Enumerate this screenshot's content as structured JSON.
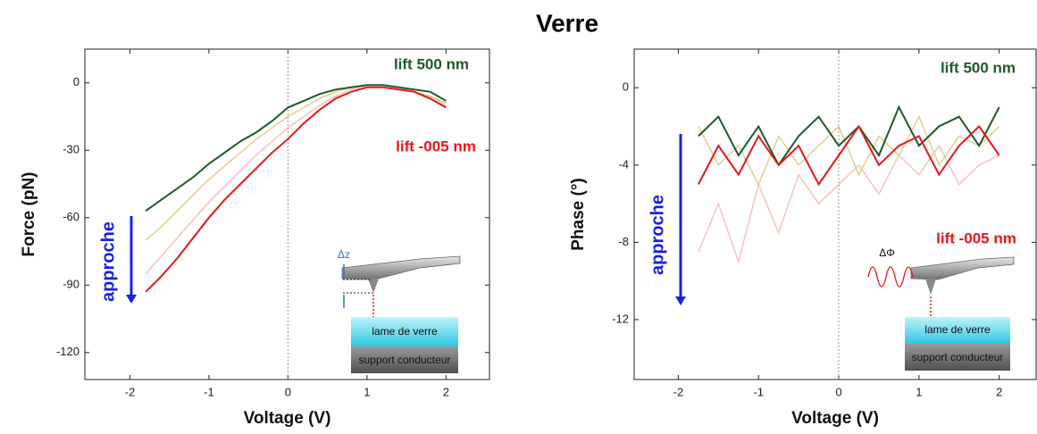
{
  "title": "Verre",
  "chart_data": [
    {
      "type": "line",
      "xlabel": "Voltage (V)",
      "ylabel": "Force (pN)",
      "xlim": [
        -2.57,
        2.55
      ],
      "ylim": [
        -132,
        15
      ],
      "xticks": [
        -2,
        -1,
        0,
        1,
        2
      ],
      "yticks": [
        0,
        -30,
        -60,
        -90,
        -120
      ],
      "arrow_label": "approche",
      "inset": {
        "delta_label": "Δz",
        "layer_top": "lame de verre",
        "layer_bottom": "support conducteur"
      },
      "series": [
        {
          "color": "#f4b8b0",
          "x": [
            -1.8,
            -1.6,
            -1.4,
            -1.2,
            -1,
            -0.8,
            -0.6,
            -0.4,
            -0.2,
            0,
            0.2,
            0.4,
            0.6,
            0.8,
            1,
            1.2,
            1.4,
            1.6,
            1.8,
            2
          ],
          "values": [
            -85,
            -77,
            -69,
            -61,
            -53,
            -46,
            -39,
            -32,
            -26,
            -20,
            -15,
            -10,
            -6,
            -3,
            -1,
            -1,
            -2,
            -4,
            -6,
            -10
          ]
        },
        {
          "color": "#d9c77a",
          "x": [
            -1.8,
            -1.6,
            -1.4,
            -1.2,
            -1,
            -0.8,
            -0.6,
            -0.4,
            -0.2,
            0,
            0.2,
            0.4,
            0.6,
            0.8,
            1,
            1.2,
            1.4,
            1.6,
            1.8,
            2
          ],
          "values": [
            -70,
            -64,
            -57,
            -50,
            -43,
            -37,
            -31,
            -25,
            -20,
            -15,
            -11,
            -7,
            -4,
            -2,
            -1,
            -1,
            -2,
            -4,
            -6,
            -9
          ]
        },
        {
          "name": "lift 500 nm",
          "color": "#1e5a28",
          "x": [
            -1.8,
            -1.6,
            -1.4,
            -1.2,
            -1,
            -0.8,
            -0.6,
            -0.4,
            -0.2,
            0,
            0.2,
            0.4,
            0.6,
            0.8,
            1,
            1.2,
            1.4,
            1.6,
            1.8,
            2
          ],
          "values": [
            -57,
            -52,
            -47,
            -42,
            -36,
            -31,
            -26,
            -22,
            -17,
            -11,
            -8,
            -5,
            -3,
            -2,
            -1,
            -1,
            -2,
            -3,
            -4,
            -8
          ]
        },
        {
          "name": "lift -005 nm",
          "color": "#e8141e",
          "x": [
            -1.8,
            -1.6,
            -1.4,
            -1.2,
            -1,
            -0.8,
            -0.6,
            -0.4,
            -0.2,
            0,
            0.2,
            0.4,
            0.6,
            0.8,
            1,
            1.2,
            1.4,
            1.6,
            1.8,
            2
          ],
          "values": [
            -93,
            -86,
            -78,
            -69,
            -60,
            -52,
            -45,
            -38,
            -31,
            -25,
            -18,
            -12,
            -7,
            -4,
            -2,
            -2,
            -3,
            -4,
            -7,
            -11
          ]
        }
      ]
    },
    {
      "type": "line",
      "xlabel": "Voltage (V)",
      "ylabel": "Phase (°)",
      "xlim": [
        -2.55,
        2.46
      ],
      "ylim": [
        -15.1,
        2
      ],
      "xticks": [
        -2,
        -1,
        0,
        1,
        2
      ],
      "yticks": [
        0,
        -4,
        -8,
        -12
      ],
      "arrow_label": "approche",
      "inset": {
        "delta_label": "ΔΦ",
        "layer_top": "lame de verre",
        "layer_bottom": "support conducteur"
      },
      "series": [
        {
          "color": "#f4b8b0",
          "x": [
            -1.75,
            -1.5,
            -1.25,
            -1,
            -0.75,
            -0.5,
            -0.25,
            0,
            0.25,
            0.5,
            0.75,
            1,
            1.25,
            1.5,
            1.75,
            2
          ],
          "values": [
            -8.5,
            -6,
            -9,
            -5,
            -7.5,
            -4.5,
            -6,
            -5,
            -4,
            -5.5,
            -3.5,
            -4.5,
            -3,
            -5,
            -4,
            -3.5
          ]
        },
        {
          "color": "#d9c77a",
          "x": [
            -1.75,
            -1.5,
            -1.25,
            -1,
            -0.75,
            -0.5,
            -0.25,
            0,
            0.25,
            0.5,
            0.75,
            1,
            1.25,
            1.5,
            1.75,
            2
          ],
          "values": [
            -2,
            -4,
            -3,
            -5,
            -2.5,
            -4,
            -3,
            -2,
            -4.5,
            -2.5,
            -3.5,
            -1.5,
            -4,
            -2.5,
            -3,
            -2
          ]
        },
        {
          "name": "lift 500 nm",
          "color": "#1e5a28",
          "x": [
            -1.75,
            -1.5,
            -1.25,
            -1,
            -0.75,
            -0.5,
            -0.25,
            0,
            0.25,
            0.5,
            0.75,
            1,
            1.25,
            1.5,
            1.75,
            2
          ],
          "values": [
            -2.5,
            -1.5,
            -3.5,
            -2,
            -4,
            -2.5,
            -1.5,
            -3,
            -2,
            -3.5,
            -1,
            -3,
            -2,
            -1.5,
            -3,
            -1
          ]
        },
        {
          "name": "lift -005 nm",
          "color": "#e8141e",
          "x": [
            -1.75,
            -1.5,
            -1.25,
            -1,
            -0.75,
            -0.5,
            -0.25,
            0,
            0.25,
            0.5,
            0.75,
            1,
            1.25,
            1.5,
            1.75,
            2
          ],
          "values": [
            -5,
            -3,
            -4.5,
            -2.5,
            -4,
            -3,
            -5,
            -3.5,
            -2,
            -4,
            -3,
            -2.5,
            -4.5,
            -3,
            -2,
            -3.5
          ]
        }
      ]
    }
  ]
}
